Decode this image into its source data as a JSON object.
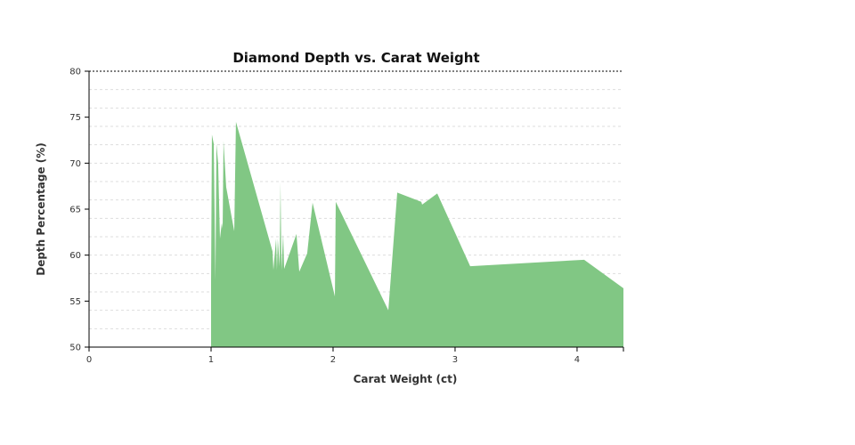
{
  "chart_data": {
    "type": "area",
    "title": "Diamond Depth vs. Carat Weight",
    "xlabel": "Carat Weight (ct)",
    "ylabel": "Depth Percentage (%)",
    "xlim": [
      0,
      4.38
    ],
    "ylim": [
      50,
      80
    ],
    "xticks": [
      0,
      1,
      2,
      3,
      4
    ],
    "yticks": [
      50,
      55,
      60,
      65,
      70,
      75,
      80
    ],
    "grid": true,
    "grid_step_y": 2,
    "color": "#81c784",
    "x": [
      1.0,
      1.007,
      1.022,
      1.036,
      1.044,
      1.058,
      1.073,
      1.088,
      1.095,
      1.102,
      1.124,
      1.19,
      1.204,
      1.504,
      1.511,
      1.533,
      1.54,
      1.547,
      1.562,
      1.569,
      1.577,
      1.591,
      1.599,
      1.7,
      1.723,
      1.788,
      1.832,
      2.015,
      2.022,
      2.453,
      2.526,
      2.723,
      2.73,
      2.854,
      3.124,
      4.058,
      4.38
    ],
    "y": [
      57.0,
      73.1,
      72.1,
      57.3,
      72.1,
      70.0,
      61.8,
      63.5,
      62.9,
      72.4,
      67.4,
      62.6,
      74.5,
      60.4,
      58.4,
      61.8,
      58.4,
      61.8,
      58.8,
      67.9,
      58.4,
      62.3,
      58.5,
      62.3,
      58.2,
      60.2,
      65.7,
      55.5,
      65.8,
      54.0,
      66.8,
      65.8,
      65.5,
      66.7,
      58.8,
      59.5,
      56.4
    ]
  }
}
